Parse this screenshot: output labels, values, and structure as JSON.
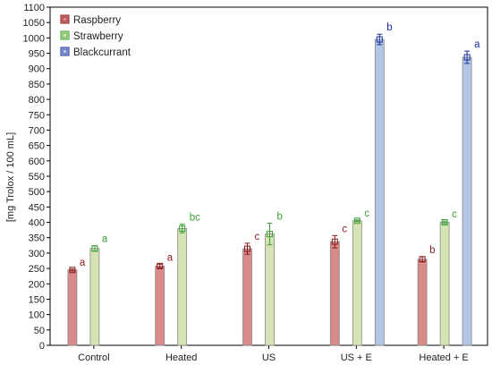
{
  "chart_data": {
    "type": "bar",
    "title": "",
    "xlabel": "",
    "ylabel": "[mg Trolox / 100 mL]",
    "ylim": [
      0,
      1100
    ],
    "ytick_step": 50,
    "grid": false,
    "legend_position": "top-left",
    "categories": [
      "Control",
      "Heated",
      "US",
      "US + E",
      "Heated  + E"
    ],
    "series": [
      {
        "name": "Raspberry",
        "fill": "#d98b8b",
        "stroke": "#8b1a1a",
        "label_color": "#8b1a1a",
        "values": [
          245,
          258,
          314,
          337,
          280
        ],
        "errors": [
          3,
          6,
          18,
          20,
          8
        ],
        "labels": [
          "a",
          "a",
          "c",
          "c",
          "b"
        ]
      },
      {
        "name": "Strawberry",
        "fill": "#d6e3b5",
        "stroke": "#3aa035",
        "label_color": "#3aa035",
        "values": [
          315,
          380,
          362,
          405,
          400
        ],
        "errors": [
          9,
          14,
          35,
          3,
          4
        ],
        "labels": [
          "a",
          "bc",
          "b",
          "c",
          "c"
        ]
      },
      {
        "name": "Blackcurrant",
        "fill": "#b3c6e3",
        "stroke": "#1a2fa0",
        "label_color": "#1a2fa0",
        "values": [
          null,
          null,
          null,
          995,
          937
        ],
        "errors": [
          null,
          null,
          null,
          17,
          20
        ],
        "labels": [
          null,
          null,
          null,
          "b",
          "a"
        ]
      }
    ]
  }
}
